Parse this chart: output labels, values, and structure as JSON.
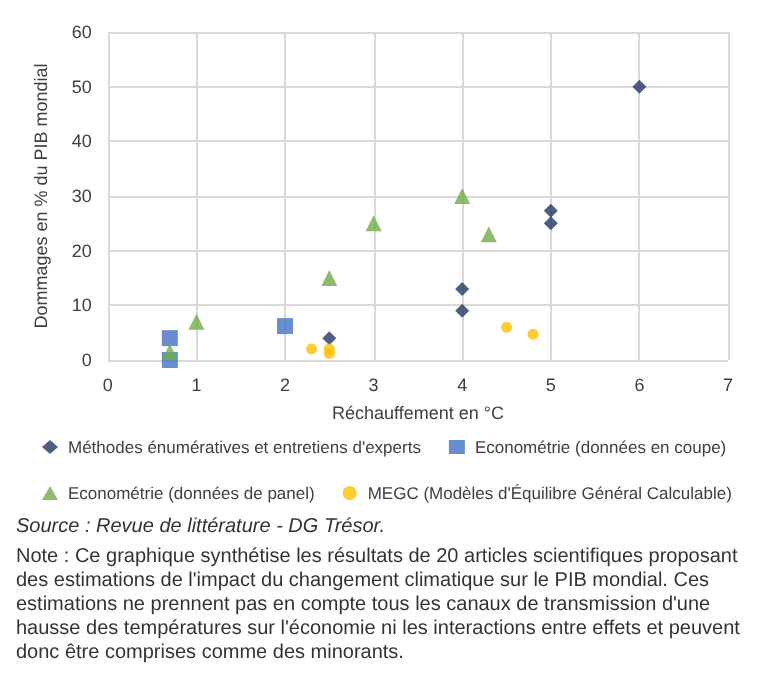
{
  "chart_data": {
    "type": "scatter",
    "xlabel": "Réchauffement en °C",
    "ylabel": "Dommages en % du PIB mondial",
    "xlim": [
      0,
      7
    ],
    "xticks": [
      0,
      1,
      2,
      3,
      4,
      5,
      6,
      7
    ],
    "ylim": [
      0,
      60
    ],
    "yticks": [
      0,
      10,
      20,
      30,
      40,
      50,
      60
    ],
    "grid": true,
    "legend": "bottom",
    "series": [
      {
        "name": "Méthodes énumératives et entretiens d'experts",
        "color": "#203864",
        "marker": "diamond",
        "x": [
          2.5,
          4,
          4,
          5,
          5,
          6
        ],
        "values": [
          4,
          13,
          9,
          27.3,
          25,
          50
        ]
      },
      {
        "name": "Econométrie (données en coupe)",
        "color": "#4472c4",
        "marker": "square",
        "x": [
          0.7,
          0.7,
          2
        ],
        "values": [
          4,
          0,
          6.2
        ]
      },
      {
        "name": "Econométrie (données de panel)",
        "color": "#70ad47",
        "marker": "triangle",
        "x": [
          0.7,
          1,
          2.5,
          3,
          4,
          4.3
        ],
        "values": [
          1.5,
          7,
          15,
          25,
          30,
          23
        ]
      },
      {
        "name": "MEGC (Modèles d'Équilibre Général Calculable)",
        "color": "#ffc000",
        "marker": "circle",
        "x": [
          2.3,
          2.5,
          2.5,
          4.5,
          4.8
        ],
        "values": [
          2,
          2,
          1.2,
          6,
          4.7
        ]
      }
    ],
    "annotations": [
      "Source : Revue de littérature - DG Trésor.",
      "Note : Ce graphique synthétise les résultats de 20 articles scientifiques proposant des estimations de l'impact du changement climatique sur le PIB mondial. Ces estimations ne prennent pas en compte tous les canaux de transmission d'une hausse des températures sur l'économie ni les interactions entre effets et peuvent donc être comprises comme des minorants."
    ]
  }
}
